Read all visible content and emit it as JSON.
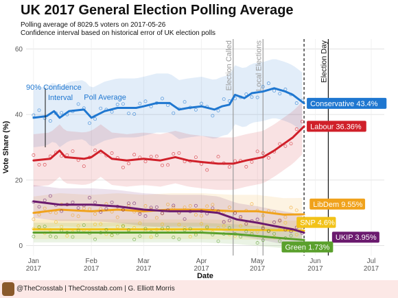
{
  "header": {
    "title": "UK 2017 General Election Polling Average",
    "subtitle_1": "Polling average of 8029.5 voters on 2017-05-26",
    "subtitle_2": "Confidence interval based on historical error of UK election polls"
  },
  "footer": {
    "text": "@TheCrosstab | TheCrosstab.com | G. Elliott Morris"
  },
  "chart_data": {
    "type": "line",
    "xlabel": "Date",
    "ylabel": "Vote Share (%)",
    "ylim": [
      -3,
      63
    ],
    "yticks": [
      0,
      20,
      40,
      60
    ],
    "grid": true,
    "x_ticks": [
      {
        "date": "2017-01-01",
        "label1": "Jan",
        "label2": "2017"
      },
      {
        "date": "2017-02-01",
        "label1": "Feb",
        "label2": "2017"
      },
      {
        "date": "2017-03-01",
        "label1": "Mar",
        "label2": "2017"
      },
      {
        "date": "2017-04-01",
        "label1": "Apr",
        "label2": "2017"
      },
      {
        "date": "2017-05-01",
        "label1": "May",
        "label2": "2017"
      },
      {
        "date": "2017-06-01",
        "label1": "Jun",
        "label2": "2017"
      },
      {
        "date": "2017-07-01",
        "label1": "Jul",
        "label2": "2017"
      }
    ],
    "xlim": [
      "2016-12-28",
      "2017-07-08"
    ],
    "vlines": [
      {
        "date": "2017-04-18",
        "label": "Election Called",
        "style": "solid-grey"
      },
      {
        "date": "2017-05-04",
        "label": "Local Elections",
        "style": "solid-grey"
      },
      {
        "date": "2017-05-26",
        "label": "",
        "style": "dashed-black"
      },
      {
        "date": "2017-06-08",
        "label": "Election Day",
        "style": "solid-black"
      }
    ],
    "annotations": {
      "ci_label": "90% Confidence\nInterval",
      "ci_range": [
        30,
        48
      ],
      "poll_avg_label": "Poll Average"
    },
    "series": [
      {
        "name": "Conservative",
        "end_label": "Conservative 43.4%",
        "color": "#1f77d0",
        "ci_halfwidth": 9,
        "points": [
          [
            "2017-01-01",
            39
          ],
          [
            "2017-01-08",
            39.5
          ],
          [
            "2017-01-12",
            41
          ],
          [
            "2017-01-15",
            39
          ],
          [
            "2017-01-20",
            41
          ],
          [
            "2017-01-28",
            41.5
          ],
          [
            "2017-02-01",
            39
          ],
          [
            "2017-02-08",
            41
          ],
          [
            "2017-02-15",
            42
          ],
          [
            "2017-02-25",
            42
          ],
          [
            "2017-03-01",
            42.5
          ],
          [
            "2017-03-08",
            43.5
          ],
          [
            "2017-03-15",
            43.5
          ],
          [
            "2017-03-20",
            41.5
          ],
          [
            "2017-03-25",
            42
          ],
          [
            "2017-04-01",
            42.5
          ],
          [
            "2017-04-08",
            41.5
          ],
          [
            "2017-04-12",
            42.5
          ],
          [
            "2017-04-16",
            43
          ],
          [
            "2017-04-19",
            46
          ],
          [
            "2017-04-24",
            45
          ],
          [
            "2017-04-28",
            46.5
          ],
          [
            "2017-05-04",
            47
          ],
          [
            "2017-05-10",
            48
          ],
          [
            "2017-05-16",
            47
          ],
          [
            "2017-05-20",
            46
          ],
          [
            "2017-05-26",
            43.4
          ]
        ]
      },
      {
        "name": "Labour",
        "end_label": "Labour 36.36%",
        "color": "#d0202a",
        "ci_halfwidth": 8,
        "points": [
          [
            "2017-01-01",
            26
          ],
          [
            "2017-01-10",
            26.5
          ],
          [
            "2017-01-15",
            29
          ],
          [
            "2017-01-18",
            27
          ],
          [
            "2017-01-28",
            26.5
          ],
          [
            "2017-02-01",
            27
          ],
          [
            "2017-02-06",
            29
          ],
          [
            "2017-02-12",
            26.5
          ],
          [
            "2017-02-20",
            26
          ],
          [
            "2017-03-01",
            26.5
          ],
          [
            "2017-03-10",
            26
          ],
          [
            "2017-03-18",
            27
          ],
          [
            "2017-03-25",
            26
          ],
          [
            "2017-04-01",
            25.5
          ],
          [
            "2017-04-10",
            25
          ],
          [
            "2017-04-18",
            25
          ],
          [
            "2017-04-25",
            26
          ],
          [
            "2017-05-04",
            27
          ],
          [
            "2017-05-10",
            29
          ],
          [
            "2017-05-15",
            31
          ],
          [
            "2017-05-20",
            33
          ],
          [
            "2017-05-26",
            36.36
          ]
        ]
      },
      {
        "name": "LibDem",
        "end_label": "LibDem 9.55%",
        "color": "#f0a21c",
        "ci_halfwidth": 5,
        "points": [
          [
            "2017-01-01",
            10
          ],
          [
            "2017-01-15",
            11
          ],
          [
            "2017-02-01",
            10.5
          ],
          [
            "2017-02-15",
            11
          ],
          [
            "2017-03-01",
            10.5
          ],
          [
            "2017-03-15",
            11
          ],
          [
            "2017-04-01",
            11
          ],
          [
            "2017-04-18",
            10.5
          ],
          [
            "2017-05-01",
            10.5
          ],
          [
            "2017-05-15",
            9.5
          ],
          [
            "2017-05-26",
            9.55
          ]
        ]
      },
      {
        "name": "SNP",
        "end_label": "SNP 4.6%",
        "color": "#f2c218",
        "ci_halfwidth": 3,
        "points": [
          [
            "2017-01-01",
            5
          ],
          [
            "2017-02-01",
            5
          ],
          [
            "2017-03-01",
            5
          ],
          [
            "2017-04-01",
            5
          ],
          [
            "2017-05-01",
            4.8
          ],
          [
            "2017-05-26",
            4.6
          ]
        ]
      },
      {
        "name": "UKIP",
        "end_label": "UKIP 3.95%",
        "color": "#6b1a6e",
        "ci_halfwidth": 5,
        "points": [
          [
            "2017-01-01",
            13.5
          ],
          [
            "2017-01-15",
            12.5
          ],
          [
            "2017-02-01",
            12.5
          ],
          [
            "2017-02-15",
            12
          ],
          [
            "2017-03-01",
            11
          ],
          [
            "2017-03-15",
            10.5
          ],
          [
            "2017-04-01",
            10.5
          ],
          [
            "2017-04-10",
            10
          ],
          [
            "2017-04-20",
            8
          ],
          [
            "2017-05-01",
            7
          ],
          [
            "2017-05-10",
            6
          ],
          [
            "2017-05-20",
            5
          ],
          [
            "2017-05-26",
            3.95
          ]
        ]
      },
      {
        "name": "Green",
        "end_label": "Green 1.73%",
        "color": "#5aa02c",
        "ci_halfwidth": 3,
        "points": [
          [
            "2017-01-01",
            4
          ],
          [
            "2017-02-01",
            4
          ],
          [
            "2017-03-01",
            4
          ],
          [
            "2017-04-01",
            4
          ],
          [
            "2017-04-20",
            3.5
          ],
          [
            "2017-05-10",
            2.5
          ],
          [
            "2017-05-26",
            1.73
          ]
        ]
      }
    ],
    "end_label_positions": {
      "Conservative": 43.4,
      "Labour": 36.4,
      "LibDem": 12.7,
      "SNP": 7.1,
      "UKIP": 2.6,
      "Green": -0.4
    }
  }
}
